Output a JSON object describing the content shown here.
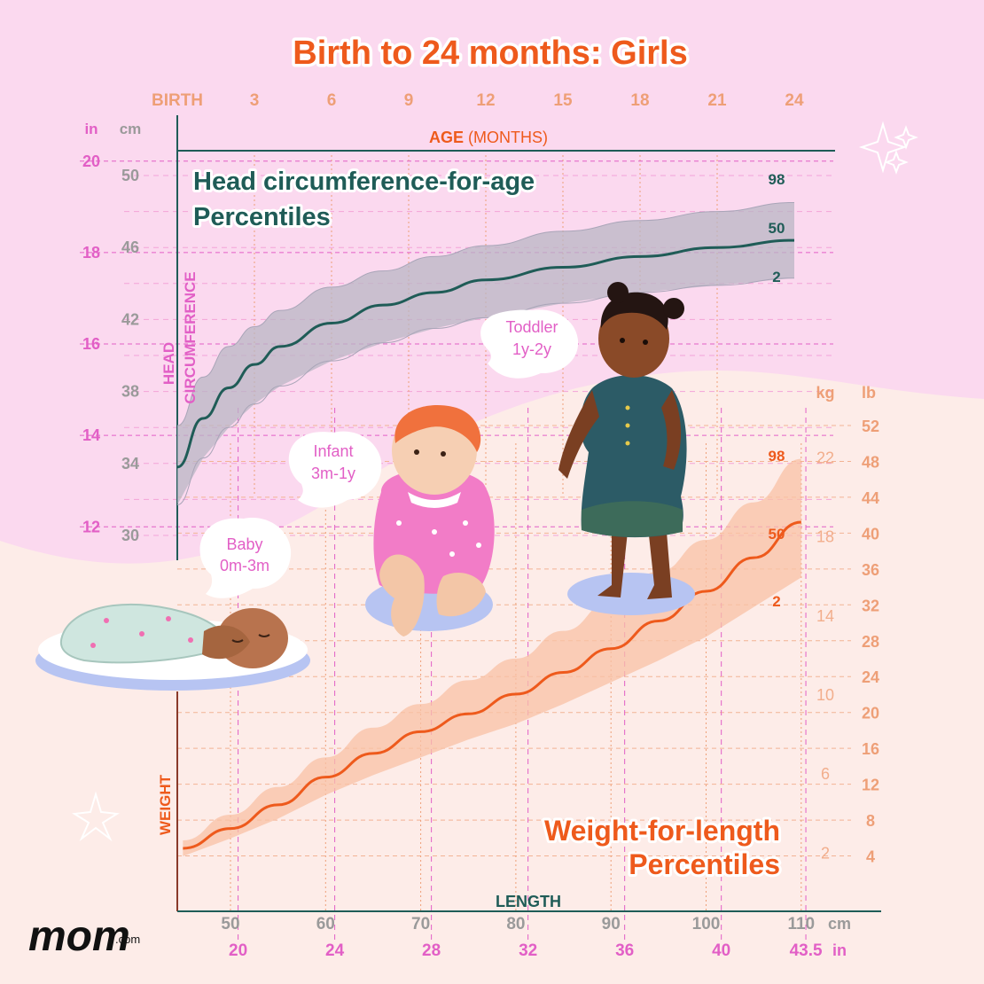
{
  "colors": {
    "pink_bg": "#fbd9ef",
    "cream_bg": "#fdece8",
    "head_teal": "#1f5c57",
    "weight_orange": "#ee5a1c",
    "tick_pink": "#e25fc6",
    "tick_orange": "#ee9f77",
    "tick_gray": "#9a9a9a",
    "band_gray": "#b9b6c4",
    "band_peach": "#f8c1a5"
  },
  "header": {
    "title": "Birth to 24 months: Girls"
  },
  "age_axis": {
    "labels": [
      "BIRTH",
      "3",
      "6",
      "9",
      "12",
      "15",
      "18",
      "21",
      "24"
    ],
    "title_bold": "AGE",
    "title_rest": " (MONTHS)"
  },
  "head_axis": {
    "in_unit": "in",
    "cm_unit": "cm",
    "in_labels": [
      "20",
      "18",
      "16",
      "14",
      "12"
    ],
    "cm_labels": [
      "50",
      "46",
      "42",
      "38",
      "34",
      "30"
    ],
    "label_line1": "HEAD",
    "label_line2": "CIRCUMFERENCE"
  },
  "weight_axis": {
    "kg_unit": "kg",
    "lb_unit": "lb",
    "kg_labels": [
      "22",
      "18",
      "14",
      "10",
      "6",
      "2"
    ],
    "lb_labels": [
      "52",
      "48",
      "44",
      "40",
      "36",
      "32",
      "28",
      "24",
      "20",
      "16",
      "12",
      "8",
      "4"
    ],
    "label": "WEIGHT",
    "length_label": "LENGTH",
    "cm_labels": [
      "50",
      "60",
      "70",
      "80",
      "90",
      "100",
      "110"
    ],
    "cm_unit": "cm",
    "in_labels": [
      "20",
      "24",
      "28",
      "32",
      "36",
      "40",
      "43.5"
    ],
    "in_unit": "in"
  },
  "head_section": {
    "title_line1": "Head circumference-for-age",
    "title_line2": "Percentiles",
    "p98": "98",
    "p50": "50",
    "p2": "2"
  },
  "weight_section": {
    "title_line1": "Weight-for-length",
    "title_line2": "Percentiles",
    "p98": "98",
    "p50": "50",
    "p2": "2"
  },
  "bubbles": {
    "baby": [
      "Baby",
      "0m-3m"
    ],
    "infant": [
      "Infant",
      "3m-1y"
    ],
    "toddler": [
      "Toddler",
      "1y-2y"
    ]
  },
  "logo": {
    "brand": "mom",
    "suffix": ".com"
  },
  "chart_data": [
    {
      "type": "area",
      "title": "Head circumference-for-age Percentiles",
      "xlabel": "AGE (MONTHS)",
      "ylabel": "HEAD CIRCUMFERENCE",
      "y_unit": "cm",
      "xlim": [
        0,
        24
      ],
      "ylim": [
        30,
        50
      ],
      "x": [
        0,
        1,
        2,
        3,
        4,
        6,
        8,
        10,
        12,
        15,
        18,
        21,
        24
      ],
      "series": [
        {
          "name": "98",
          "values": [
            36.1,
            38.8,
            40.5,
            41.6,
            42.5,
            43.8,
            44.7,
            45.5,
            46.1,
            46.9,
            47.5,
            48.0,
            48.5
          ]
        },
        {
          "name": "50",
          "values": [
            33.8,
            36.5,
            38.2,
            39.5,
            40.5,
            41.8,
            42.8,
            43.5,
            44.2,
            44.9,
            45.5,
            46.0,
            46.4
          ]
        },
        {
          "name": "2",
          "values": [
            31.7,
            34.3,
            36.0,
            37.3,
            38.3,
            39.7,
            40.7,
            41.5,
            42.1,
            42.9,
            43.5,
            43.9,
            44.3
          ]
        }
      ]
    },
    {
      "type": "area",
      "title": "Weight-for-length Percentiles",
      "xlabel": "LENGTH",
      "ylabel": "WEIGHT",
      "x_unit": "cm",
      "y_unit": "kg",
      "xlim": [
        45,
        110
      ],
      "ylim": [
        0,
        24
      ],
      "x": [
        45,
        50,
        55,
        60,
        65,
        70,
        75,
        80,
        85,
        90,
        95,
        100,
        105,
        110
      ],
      "series": [
        {
          "name": "98",
          "values": [
            2.6,
            3.9,
            5.3,
            6.8,
            8.3,
            9.5,
            10.7,
            11.8,
            13.2,
            14.7,
            16.2,
            17.8,
            19.7,
            21.9
          ]
        },
        {
          "name": "50",
          "values": [
            2.2,
            3.2,
            4.4,
            5.8,
            7.0,
            8.1,
            9.0,
            10.0,
            11.1,
            12.3,
            13.7,
            15.2,
            16.9,
            18.7
          ]
        },
        {
          "name": "2",
          "values": [
            1.8,
            2.7,
            3.7,
            4.9,
            5.9,
            6.8,
            7.7,
            8.5,
            9.5,
            10.6,
            11.7,
            12.9,
            14.4,
            15.9
          ]
        }
      ]
    }
  ]
}
